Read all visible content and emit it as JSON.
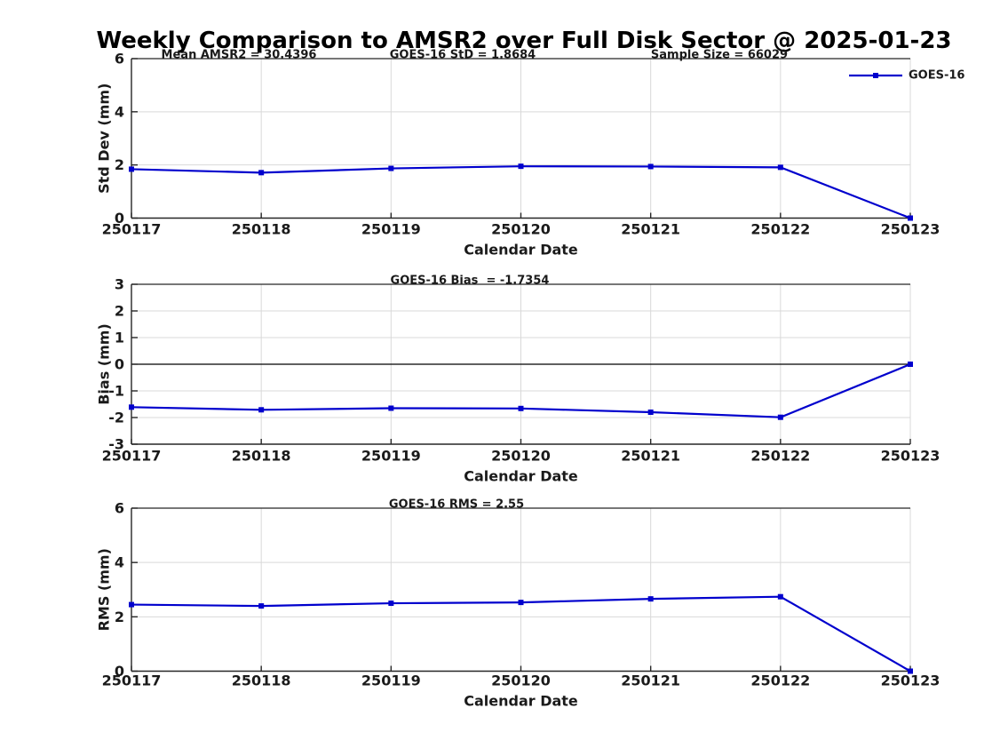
{
  "title": "Weekly Comparison to AMSR2 over Full Disk Sector @ 2025-01-23",
  "legend": {
    "label": "GOES-16",
    "position": "top-right"
  },
  "colors": {
    "line": "#0000CD",
    "marker": "#0000CD",
    "grid": "#d9d9d9",
    "axis": "#262626",
    "zero_line": "#000000",
    "text": "#1a1a1a",
    "background": "#ffffff"
  },
  "chart_data": [
    {
      "type": "line",
      "name": "std-dev",
      "annotations": [
        "Mean AMSR2 = 30.4396",
        "GOES-16 StD = 1.8684",
        "Sample Size = 66029"
      ],
      "categories": [
        "250117",
        "250118",
        "250119",
        "250120",
        "250121",
        "250122",
        "250123"
      ],
      "series": [
        {
          "name": "GOES-16",
          "marker": "square",
          "values": [
            1.84,
            1.71,
            1.87,
            1.95,
            1.94,
            1.91,
            0.0
          ]
        }
      ],
      "xlabel": "Calendar Date",
      "ylabel": "Std Dev (mm)",
      "ylim": [
        0,
        6
      ],
      "yticks": [
        0,
        2,
        4,
        6
      ],
      "grid": true,
      "zero_line": false,
      "show_legend": true
    },
    {
      "type": "line",
      "name": "bias",
      "annotations": [
        "GOES-16 Bias  = -1.7354"
      ],
      "categories": [
        "250117",
        "250118",
        "250119",
        "250120",
        "250121",
        "250122",
        "250123"
      ],
      "series": [
        {
          "name": "GOES-16",
          "marker": "square",
          "values": [
            -1.61,
            -1.71,
            -1.65,
            -1.66,
            -1.8,
            -1.99,
            0.0
          ]
        }
      ],
      "xlabel": "Calendar Date",
      "ylabel": "Bias (mm)",
      "ylim": [
        -3,
        3
      ],
      "yticks": [
        -3,
        -2,
        -1,
        0,
        1,
        2,
        3
      ],
      "grid": true,
      "zero_line": true,
      "show_legend": false
    },
    {
      "type": "line",
      "name": "rms",
      "annotations": [
        "GOES-16 RMS = 2.55"
      ],
      "categories": [
        "250117",
        "250118",
        "250119",
        "250120",
        "250121",
        "250122",
        "250123"
      ],
      "series": [
        {
          "name": "GOES-16",
          "marker": "square",
          "values": [
            2.45,
            2.4,
            2.5,
            2.53,
            2.66,
            2.74,
            0.0
          ]
        }
      ],
      "xlabel": "Calendar Date",
      "ylabel": "RMS (mm)",
      "ylim": [
        0,
        6
      ],
      "yticks": [
        0,
        2,
        4,
        6
      ],
      "grid": true,
      "zero_line": false,
      "show_legend": false
    }
  ]
}
